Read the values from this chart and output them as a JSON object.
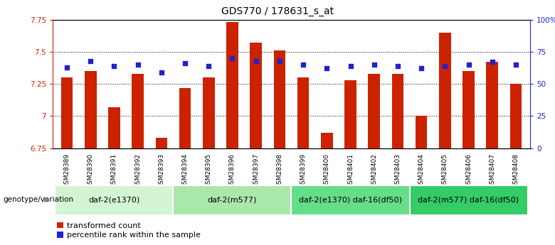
{
  "title": "GDS770 / 178631_s_at",
  "samples": [
    "GSM28389",
    "GSM28390",
    "GSM28391",
    "GSM28392",
    "GSM28393",
    "GSM28394",
    "GSM28395",
    "GSM28396",
    "GSM28397",
    "GSM28398",
    "GSM28399",
    "GSM28400",
    "GSM28401",
    "GSM28402",
    "GSM28403",
    "GSM28404",
    "GSM28405",
    "GSM28406",
    "GSM28407",
    "GSM28408"
  ],
  "transformed_count": [
    7.3,
    7.35,
    7.07,
    7.33,
    6.83,
    7.22,
    7.3,
    7.73,
    7.57,
    7.51,
    7.3,
    6.87,
    7.28,
    7.33,
    7.33,
    7.0,
    7.65,
    7.35,
    7.42,
    7.25
  ],
  "percentile_rank": [
    63,
    68,
    64,
    65,
    59,
    66,
    64,
    70,
    68,
    68,
    65,
    62,
    64,
    65,
    64,
    62,
    64,
    65,
    67,
    65
  ],
  "ylim_left": [
    6.75,
    7.75
  ],
  "ylim_right": [
    0,
    100
  ],
  "yticks_left": [
    6.75,
    7.0,
    7.25,
    7.5,
    7.75
  ],
  "yticks_right": [
    0,
    25,
    50,
    75,
    100
  ],
  "ytick_labels_left": [
    "6.75",
    "7",
    "7.25",
    "7.5",
    "7.75"
  ],
  "ytick_labels_right": [
    "0",
    "25",
    "50",
    "75",
    "100%"
  ],
  "bar_color": "#cc2200",
  "dot_color": "#2222cc",
  "groups": [
    {
      "label": "daf-2(e1370)",
      "start": 0,
      "end": 5,
      "color": "#d4f5d4"
    },
    {
      "label": "daf-2(m577)",
      "start": 5,
      "end": 10,
      "color": "#aae8aa"
    },
    {
      "label": "daf-2(e1370) daf-16(df50)",
      "start": 10,
      "end": 15,
      "color": "#66dd88"
    },
    {
      "label": "daf-2(m577) daf-16(df50)",
      "start": 15,
      "end": 20,
      "color": "#33cc66"
    }
  ],
  "genotype_label": "genotype/variation",
  "legend_items": [
    {
      "label": "transformed count",
      "color": "#cc2200"
    },
    {
      "label": "percentile rank within the sample",
      "color": "#2222cc"
    }
  ],
  "grid_yticks": [
    7.0,
    7.25,
    7.5
  ],
  "bar_width": 0.5,
  "title_fontsize": 10,
  "tick_fontsize": 7.5,
  "label_fontsize": 8,
  "xtick_fontsize": 6.5,
  "group_fontsize": 8,
  "legend_fontsize": 8
}
